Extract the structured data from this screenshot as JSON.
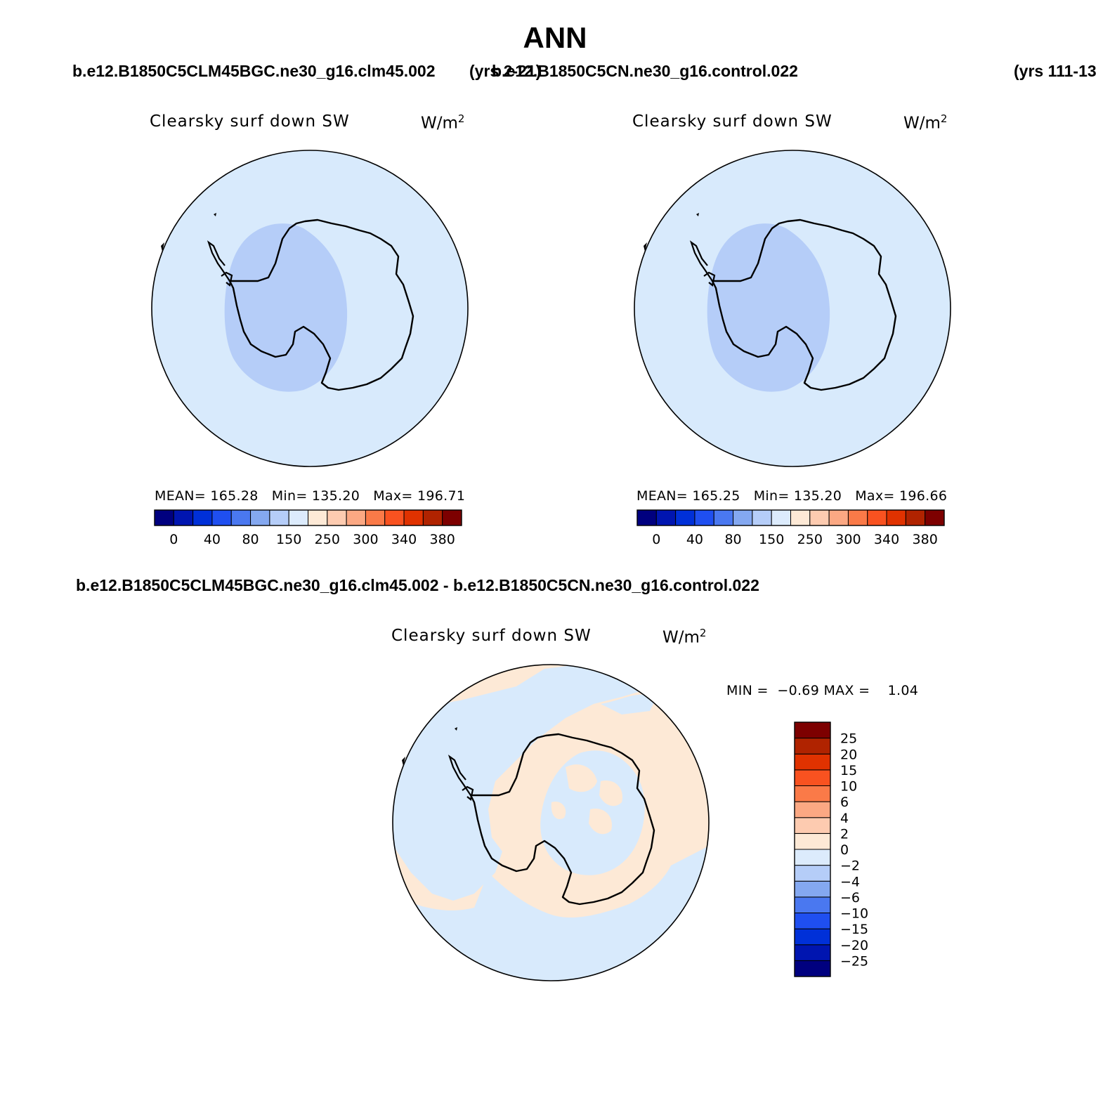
{
  "figure": {
    "title": "ANN",
    "header": {
      "case1": "b.e12.B1850C5CLM45BGC.ne30_g16.clm45.002",
      "years1": "(yrs 2-21)",
      "case2": "b.e12.B1850C5CN.ne30_g16.control.022",
      "years2": "(yrs 111-13"
    },
    "diff_title": "b.e12.B1850C5CLM45BGC.ne30_g16.clm45.002 - b.e12.B1850C5CN.ne30_g16.control.022"
  },
  "panels": [
    {
      "variable": "Clearsky surf down SW",
      "units": "W/m",
      "units_exp": "2",
      "stats": {
        "mean_label": "MEAN=",
        "mean": "165.28",
        "min_label": "Min=",
        "min": "135.20",
        "max_label": "Max=",
        "max": "196.71"
      }
    },
    {
      "variable": "Clearsky surf down SW",
      "units": "W/m",
      "units_exp": "2",
      "stats": {
        "mean_label": "MEAN=",
        "mean": "165.25",
        "min_label": "Min=",
        "min": "135.20",
        "max_label": "Max=",
        "max": "196.66"
      }
    },
    {
      "variable": "Clearsky surf down SW",
      "units": "W/m",
      "units_exp": "2",
      "stats": {
        "min_label": "MIN =",
        "min": "−0.69",
        "max_label": "MAX =",
        "max": "1.04"
      }
    }
  ],
  "colorbar_abs": {
    "colors": [
      "#00007f",
      "#0015b0",
      "#0030d8",
      "#1f4ff0",
      "#4a78f0",
      "#84a8f0",
      "#b5cdf8",
      "#dcebfc",
      "#fde9d6",
      "#fdcbb0",
      "#fba883",
      "#fa7a48",
      "#f95220",
      "#e03200",
      "#b02300",
      "#7d0000"
    ],
    "labels": [
      "0",
      "40",
      "80",
      "150",
      "250",
      "300",
      "340",
      "380"
    ],
    "label_boundaries": [
      1,
      3,
      5,
      7,
      9,
      11,
      13,
      15
    ]
  },
  "colorbar_diff": {
    "colors": [
      "#00007f",
      "#0015b0",
      "#0030d8",
      "#1f4ff0",
      "#4a78f0",
      "#84a8f0",
      "#b5cdf8",
      "#dcebfc",
      "#fde9d6",
      "#fdcbb0",
      "#fba883",
      "#fa7a48",
      "#f95220",
      "#e03200",
      "#b02300",
      "#7d0000"
    ],
    "labels": [
      "25",
      "20",
      "15",
      "10",
      "6",
      "4",
      "2",
      "0",
      "−2",
      "−4",
      "−6",
      "−10",
      "−15",
      "−20",
      "−25"
    ]
  },
  "map_colors": {
    "ocean": "#d8eafc",
    "interior_low": "#b5cdf8",
    "diff_positive": "#fde9d6",
    "diff_negative": "#d8eafc"
  }
}
